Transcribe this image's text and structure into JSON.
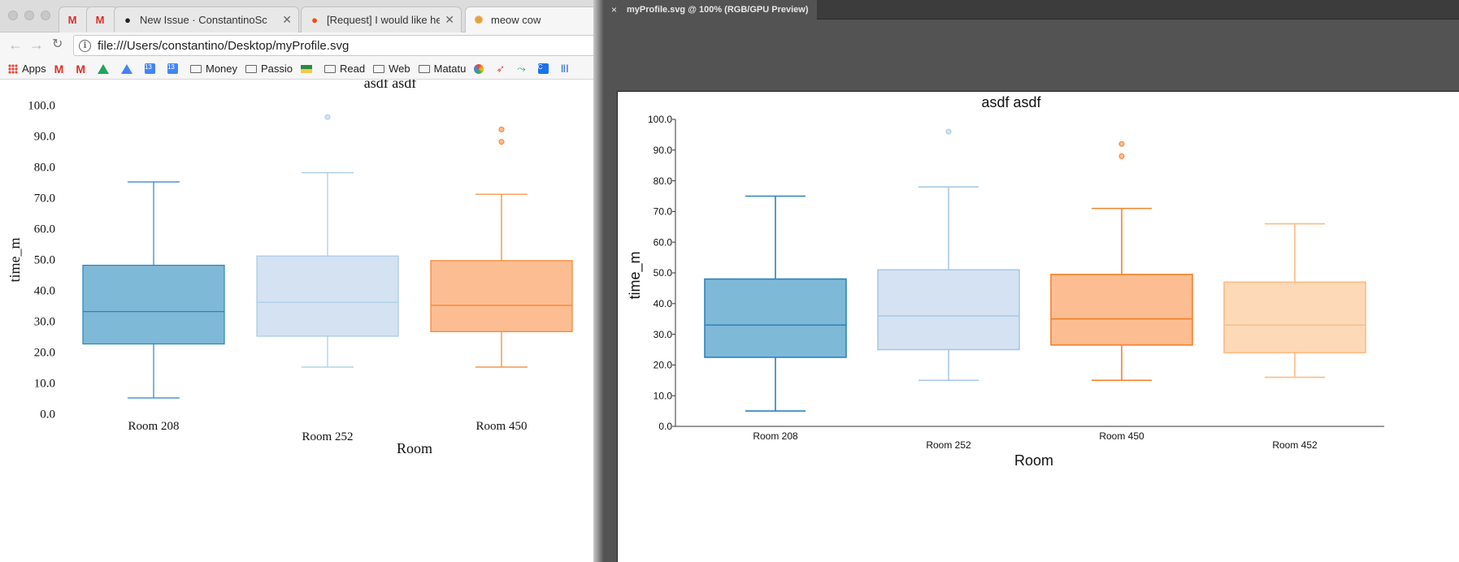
{
  "browser": {
    "tabs": [
      {
        "icon": "gmail-icon",
        "title": ""
      },
      {
        "icon": "gmail-icon",
        "title": ""
      },
      {
        "icon": "github-icon",
        "title": "New Issue · ConstantinoSc"
      },
      {
        "icon": "reddit-icon",
        "title": "[Request] I would like help"
      },
      {
        "icon": "meow-icon",
        "title": "meow cow"
      }
    ],
    "url": "file:///Users/constantino/Desktop/myProfile.svg",
    "bookmarks": [
      {
        "icon": "apps-icon",
        "label": "Apps"
      },
      {
        "icon": "gmail-icon",
        "label": ""
      },
      {
        "icon": "gmail-icon",
        "label": ""
      },
      {
        "icon": "drive-icon",
        "label": ""
      },
      {
        "icon": "drive-icon",
        "label": ""
      },
      {
        "icon": "calendar-icon",
        "label": "13"
      },
      {
        "icon": "calendar-icon",
        "label": "13"
      },
      {
        "icon": "folder-icon",
        "label": "Money"
      },
      {
        "icon": "folder-icon",
        "label": "Passio"
      },
      {
        "icon": "flag-icon",
        "label": ""
      },
      {
        "icon": "folder-icon",
        "label": "Read"
      },
      {
        "icon": "folder-icon",
        "label": "Web"
      },
      {
        "icon": "folder-icon",
        "label": "Matatu"
      },
      {
        "icon": "pinwheel-icon",
        "label": ""
      },
      {
        "icon": "rocket-icon",
        "label": ""
      },
      {
        "icon": "bird-icon",
        "label": ""
      },
      {
        "icon": "c-icon",
        "label": "C"
      },
      {
        "icon": "bars-icon",
        "label": ""
      }
    ]
  },
  "preview": {
    "tab_title": "myProfile.svg @ 100% (RGB/GPU Preview)",
    "close": "×"
  },
  "chart_data": {
    "type": "box",
    "title": "asdf asdf",
    "xlabel": "Room",
    "ylabel": "time_m",
    "ylim": [
      0,
      100
    ],
    "yticks": [
      "0.0",
      "10.0",
      "20.0",
      "30.0",
      "40.0",
      "50.0",
      "60.0",
      "70.0",
      "80.0",
      "90.0",
      "100.0"
    ],
    "categories": [
      "Room 208",
      "Room 252",
      "Room 450",
      "Room 452"
    ],
    "series": [
      {
        "category": "Room 208",
        "whisker_low": 5,
        "q1": 22.5,
        "median": 33,
        "q3": 48,
        "whisker_high": 75,
        "outliers": [],
        "fill": "#7fb9d8",
        "stroke": "#2a84bd"
      },
      {
        "category": "Room 252",
        "whisker_low": 15,
        "q1": 25,
        "median": 36,
        "q3": 51,
        "whisker_high": 78,
        "outliers": [
          96
        ],
        "fill": "#d4e2f2",
        "stroke": "#a8c9e6"
      },
      {
        "category": "Room 450",
        "whisker_low": 15,
        "q1": 26.5,
        "median": 35,
        "q3": 49.5,
        "whisker_high": 71,
        "outliers": [
          92,
          88
        ],
        "fill": "#fdbd92",
        "stroke": "#f4822b"
      },
      {
        "category": "Room 452",
        "whisker_low": 16,
        "q1": 24,
        "median": 33,
        "q3": 47,
        "whisker_high": 66,
        "outliers": [],
        "fill": "#fdd9b8",
        "stroke": "#fdbb84"
      }
    ]
  }
}
